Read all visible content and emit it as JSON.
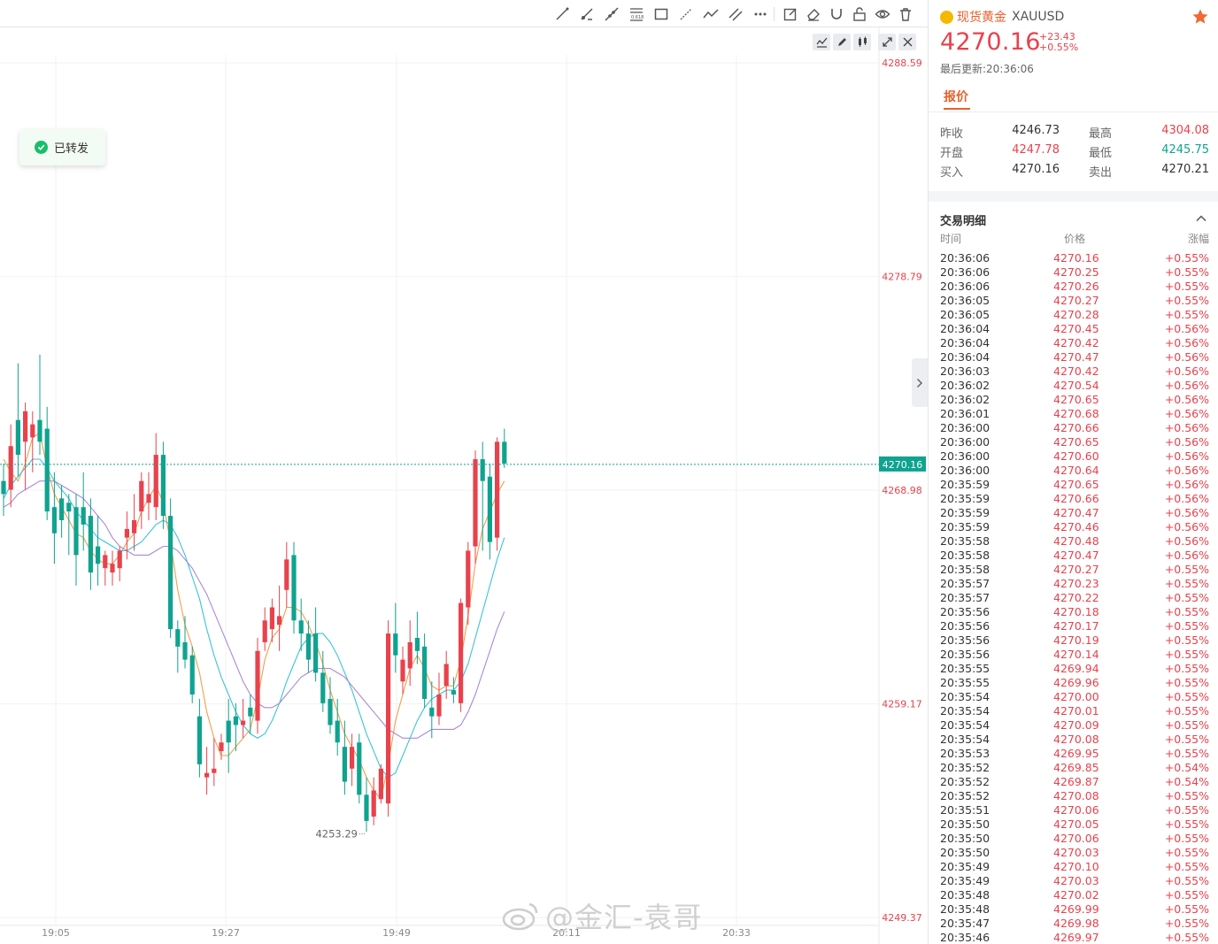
{
  "symbol": {
    "name": "现货黄金",
    "code": "XAUUSD",
    "price": "4270.16",
    "change": "+23.43",
    "change_pct": "+0.55%",
    "last_update": "最后更新:20:36:06"
  },
  "tabs": {
    "quote": "报价"
  },
  "quote": {
    "rows": [
      {
        "l1": "昨收",
        "v1": "4246.73",
        "c1": "dark",
        "l2": "最高",
        "v2": "4304.08",
        "c2": "red"
      },
      {
        "l1": "开盘",
        "v1": "4247.78",
        "c1": "red",
        "l2": "最低",
        "v2": "4245.75",
        "c2": "green"
      },
      {
        "l1": "买入",
        "v1": "4270.16",
        "c1": "dark",
        "l2": "卖出",
        "v2": "4270.21",
        "c2": "dark"
      }
    ]
  },
  "trade_detail": {
    "title": "交易明细",
    "headers": {
      "time": "时间",
      "price": "价格",
      "change": "涨幅"
    },
    "rows": [
      [
        "20:36:06",
        "4270.16",
        "+0.55%"
      ],
      [
        "20:36:06",
        "4270.25",
        "+0.55%"
      ],
      [
        "20:36:06",
        "4270.26",
        "+0.55%"
      ],
      [
        "20:36:05",
        "4270.27",
        "+0.55%"
      ],
      [
        "20:36:05",
        "4270.28",
        "+0.55%"
      ],
      [
        "20:36:04",
        "4270.45",
        "+0.56%"
      ],
      [
        "20:36:04",
        "4270.42",
        "+0.56%"
      ],
      [
        "20:36:04",
        "4270.47",
        "+0.56%"
      ],
      [
        "20:36:03",
        "4270.42",
        "+0.56%"
      ],
      [
        "20:36:02",
        "4270.54",
        "+0.56%"
      ],
      [
        "20:36:02",
        "4270.65",
        "+0.56%"
      ],
      [
        "20:36:01",
        "4270.68",
        "+0.56%"
      ],
      [
        "20:36:00",
        "4270.66",
        "+0.56%"
      ],
      [
        "20:36:00",
        "4270.65",
        "+0.56%"
      ],
      [
        "20:36:00",
        "4270.60",
        "+0.56%"
      ],
      [
        "20:36:00",
        "4270.64",
        "+0.56%"
      ],
      [
        "20:35:59",
        "4270.65",
        "+0.56%"
      ],
      [
        "20:35:59",
        "4270.66",
        "+0.56%"
      ],
      [
        "20:35:59",
        "4270.47",
        "+0.56%"
      ],
      [
        "20:35:59",
        "4270.46",
        "+0.56%"
      ],
      [
        "20:35:58",
        "4270.48",
        "+0.56%"
      ],
      [
        "20:35:58",
        "4270.47",
        "+0.56%"
      ],
      [
        "20:35:58",
        "4270.27",
        "+0.55%"
      ],
      [
        "20:35:57",
        "4270.23",
        "+0.55%"
      ],
      [
        "20:35:57",
        "4270.22",
        "+0.55%"
      ],
      [
        "20:35:56",
        "4270.18",
        "+0.55%"
      ],
      [
        "20:35:56",
        "4270.17",
        "+0.55%"
      ],
      [
        "20:35:56",
        "4270.19",
        "+0.55%"
      ],
      [
        "20:35:56",
        "4270.14",
        "+0.55%"
      ],
      [
        "20:35:55",
        "4269.94",
        "+0.55%"
      ],
      [
        "20:35:55",
        "4269.96",
        "+0.55%"
      ],
      [
        "20:35:54",
        "4270.00",
        "+0.55%"
      ],
      [
        "20:35:54",
        "4270.01",
        "+0.55%"
      ],
      [
        "20:35:54",
        "4270.09",
        "+0.55%"
      ],
      [
        "20:35:54",
        "4270.08",
        "+0.55%"
      ],
      [
        "20:35:53",
        "4269.95",
        "+0.55%"
      ],
      [
        "20:35:52",
        "4269.85",
        "+0.54%"
      ],
      [
        "20:35:52",
        "4269.87",
        "+0.54%"
      ],
      [
        "20:35:52",
        "4270.08",
        "+0.55%"
      ],
      [
        "20:35:51",
        "4270.06",
        "+0.55%"
      ],
      [
        "20:35:50",
        "4270.05",
        "+0.55%"
      ],
      [
        "20:35:50",
        "4270.06",
        "+0.55%"
      ],
      [
        "20:35:50",
        "4270.03",
        "+0.55%"
      ],
      [
        "20:35:49",
        "4270.10",
        "+0.55%"
      ],
      [
        "20:35:49",
        "4270.03",
        "+0.55%"
      ],
      [
        "20:35:48",
        "4270.02",
        "+0.55%"
      ],
      [
        "20:35:48",
        "4269.99",
        "+0.55%"
      ],
      [
        "20:35:47",
        "4269.98",
        "+0.55%"
      ],
      [
        "20:35:46",
        "4269.97",
        "+0.55%"
      ]
    ]
  },
  "toast": {
    "text": "已转发"
  },
  "watermark": {
    "text": "@金汇-袁哥"
  },
  "colors": {
    "up": "#e8424c",
    "down": "#0fa38f",
    "accent": "#e8602c",
    "ma1": "#f0a04b",
    "ma2": "#3cc3d6",
    "ma3": "#a98ad8"
  },
  "chart_data": {
    "type": "candlestick",
    "x_ticks": [
      "19:05",
      "19:27",
      "19:49",
      "20:11",
      "20:33"
    ],
    "y_ticks": [
      4288.59,
      4278.79,
      4268.98,
      4259.17,
      4249.37
    ],
    "ylim": [
      4249.37,
      4288.59
    ],
    "current_price": 4270.16,
    "low_marker": {
      "label": "4253.29",
      "value": 4253.29
    },
    "candles": [
      {
        "o": 4269.4,
        "h": 4270.2,
        "l": 4267.8,
        "c": 4268.8
      },
      {
        "o": 4269.0,
        "h": 4272.0,
        "l": 4268.2,
        "c": 4271.0
      },
      {
        "o": 4272.2,
        "h": 4274.8,
        "l": 4269.6,
        "c": 4270.6
      },
      {
        "o": 4271.2,
        "h": 4273.0,
        "l": 4269.0,
        "c": 4272.6
      },
      {
        "o": 4271.4,
        "h": 4272.6,
        "l": 4269.8,
        "c": 4272.0
      },
      {
        "o": 4272.2,
        "h": 4275.2,
        "l": 4270.6,
        "c": 4271.2
      },
      {
        "o": 4271.8,
        "h": 4272.8,
        "l": 4267.6,
        "c": 4268.0
      },
      {
        "o": 4268.2,
        "h": 4269.8,
        "l": 4265.6,
        "c": 4267.0
      },
      {
        "o": 4268.6,
        "h": 4269.2,
        "l": 4266.8,
        "c": 4267.6
      },
      {
        "o": 4268.4,
        "h": 4268.8,
        "l": 4266.0,
        "c": 4268.0
      },
      {
        "o": 4268.2,
        "h": 4268.8,
        "l": 4264.6,
        "c": 4266.0
      },
      {
        "o": 4268.2,
        "h": 4269.8,
        "l": 4266.2,
        "c": 4267.4
      },
      {
        "o": 4267.8,
        "h": 4268.6,
        "l": 4264.4,
        "c": 4265.2
      },
      {
        "o": 4266.4,
        "h": 4267.8,
        "l": 4264.6,
        "c": 4265.6
      },
      {
        "o": 4265.4,
        "h": 4266.2,
        "l": 4264.6,
        "c": 4266.0
      },
      {
        "o": 4265.2,
        "h": 4266.2,
        "l": 4264.6,
        "c": 4265.6
      },
      {
        "o": 4265.4,
        "h": 4266.4,
        "l": 4264.8,
        "c": 4266.2
      },
      {
        "o": 4266.8,
        "h": 4268.0,
        "l": 4265.8,
        "c": 4267.2
      },
      {
        "o": 4267.0,
        "h": 4268.8,
        "l": 4266.2,
        "c": 4267.6
      },
      {
        "o": 4268.0,
        "h": 4269.8,
        "l": 4267.2,
        "c": 4269.4
      },
      {
        "o": 4268.4,
        "h": 4269.8,
        "l": 4267.6,
        "c": 4268.8
      },
      {
        "o": 4268.2,
        "h": 4271.6,
        "l": 4267.6,
        "c": 4270.6
      },
      {
        "o": 4270.6,
        "h": 4271.2,
        "l": 4267.2,
        "c": 4267.8
      },
      {
        "o": 4267.8,
        "h": 4268.6,
        "l": 4262.2,
        "c": 4262.6
      },
      {
        "o": 4262.6,
        "h": 4263.0,
        "l": 4260.6,
        "c": 4261.8
      },
      {
        "o": 4262.0,
        "h": 4263.2,
        "l": 4260.8,
        "c": 4261.2
      },
      {
        "o": 4261.4,
        "h": 4261.8,
        "l": 4259.2,
        "c": 4259.6
      },
      {
        "o": 4258.6,
        "h": 4259.4,
        "l": 4255.8,
        "c": 4256.4
      },
      {
        "o": 4255.8,
        "h": 4257.2,
        "l": 4255.0,
        "c": 4256.0
      },
      {
        "o": 4256.0,
        "h": 4257.6,
        "l": 4255.4,
        "c": 4256.2
      },
      {
        "o": 4257.0,
        "h": 4257.8,
        "l": 4256.6,
        "c": 4257.4
      },
      {
        "o": 4258.4,
        "h": 4259.4,
        "l": 4256.0,
        "c": 4257.4
      },
      {
        "o": 4258.6,
        "h": 4259.2,
        "l": 4257.0,
        "c": 4258.2
      },
      {
        "o": 4258.2,
        "h": 4259.4,
        "l": 4257.6,
        "c": 4258.4
      },
      {
        "o": 4259.0,
        "h": 4259.6,
        "l": 4257.8,
        "c": 4258.6
      },
      {
        "o": 4258.4,
        "h": 4262.2,
        "l": 4257.8,
        "c": 4261.6
      },
      {
        "o": 4262.0,
        "h": 4263.6,
        "l": 4261.6,
        "c": 4263.0
      },
      {
        "o": 4262.6,
        "h": 4264.0,
        "l": 4262.0,
        "c": 4263.6
      },
      {
        "o": 4262.8,
        "h": 4264.6,
        "l": 4261.6,
        "c": 4263.2
      },
      {
        "o": 4264.4,
        "h": 4266.6,
        "l": 4263.6,
        "c": 4265.8
      },
      {
        "o": 4266.0,
        "h": 4266.6,
        "l": 4262.4,
        "c": 4263.0
      },
      {
        "o": 4263.0,
        "h": 4264.0,
        "l": 4261.6,
        "c": 4262.4
      },
      {
        "o": 4262.4,
        "h": 4263.0,
        "l": 4260.6,
        "c": 4261.2
      },
      {
        "o": 4262.4,
        "h": 4263.6,
        "l": 4260.2,
        "c": 4260.6
      },
      {
        "o": 4260.6,
        "h": 4261.6,
        "l": 4258.8,
        "c": 4259.2
      },
      {
        "o": 4259.4,
        "h": 4260.4,
        "l": 4257.8,
        "c": 4258.2
      },
      {
        "o": 4258.4,
        "h": 4259.4,
        "l": 4256.8,
        "c": 4257.4
      },
      {
        "o": 4257.2,
        "h": 4258.4,
        "l": 4255.0,
        "c": 4255.6
      },
      {
        "o": 4256.2,
        "h": 4257.8,
        "l": 4255.4,
        "c": 4257.2
      },
      {
        "o": 4257.4,
        "h": 4257.8,
        "l": 4254.6,
        "c": 4255.0
      },
      {
        "o": 4255.0,
        "h": 4255.8,
        "l": 4253.3,
        "c": 4253.8
      },
      {
        "o": 4254.0,
        "h": 4255.8,
        "l": 4253.6,
        "c": 4255.2
      },
      {
        "o": 4254.8,
        "h": 4256.4,
        "l": 4254.6,
        "c": 4256.2
      },
      {
        "o": 4254.6,
        "h": 4263.0,
        "l": 4254.0,
        "c": 4262.4
      },
      {
        "o": 4262.4,
        "h": 4263.8,
        "l": 4260.6,
        "c": 4261.4
      },
      {
        "o": 4260.2,
        "h": 4261.8,
        "l": 4259.6,
        "c": 4261.2
      },
      {
        "o": 4260.8,
        "h": 4263.0,
        "l": 4260.0,
        "c": 4262.0
      },
      {
        "o": 4262.2,
        "h": 4263.4,
        "l": 4261.0,
        "c": 4261.6
      },
      {
        "o": 4261.8,
        "h": 4262.4,
        "l": 4259.0,
        "c": 4259.4
      },
      {
        "o": 4259.0,
        "h": 4260.2,
        "l": 4257.6,
        "c": 4258.6
      },
      {
        "o": 4258.6,
        "h": 4260.6,
        "l": 4258.2,
        "c": 4259.6
      },
      {
        "o": 4260.0,
        "h": 4261.6,
        "l": 4259.4,
        "c": 4261.0
      },
      {
        "o": 4259.8,
        "h": 4260.4,
        "l": 4259.2,
        "c": 4259.6
      },
      {
        "o": 4259.2,
        "h": 4264.0,
        "l": 4258.8,
        "c": 4263.8
      },
      {
        "o": 4263.6,
        "h": 4266.6,
        "l": 4262.8,
        "c": 4266.2
      },
      {
        "o": 4266.4,
        "h": 4270.8,
        "l": 4265.6,
        "c": 4270.4
      },
      {
        "o": 4270.4,
        "h": 4271.2,
        "l": 4266.2,
        "c": 4269.4
      },
      {
        "o": 4269.6,
        "h": 4270.2,
        "l": 4265.8,
        "c": 4266.6
      },
      {
        "o": 4266.8,
        "h": 4271.4,
        "l": 4266.2,
        "c": 4271.2
      },
      {
        "o": 4271.2,
        "h": 4271.8,
        "l": 4270.0,
        "c": 4270.2
      }
    ],
    "ma": [
      {
        "name": "MA-fast",
        "color": "#f0a04b",
        "values": [
          4270.4,
          4269.8,
          4269.4,
          4270.2,
          4271.4,
          4271.6,
          4270.0,
          4268.8,
          4268.2,
          4267.6,
          4267.0,
          4266.8,
          4266.2,
          4265.8,
          4265.6,
          4265.6,
          4266.0,
          4266.6,
          4267.0,
          4268.0,
          4268.6,
          4269.2,
          4268.4,
          4266.6,
          4264.4,
          4262.8,
          4261.8,
          4260.6,
          4258.8,
          4257.6,
          4256.8,
          4256.8,
          4257.2,
          4257.6,
          4258.0,
          4259.4,
          4261.2,
          4262.2,
          4262.6,
          4263.6,
          4263.6,
          4263.4,
          4262.8,
          4262.0,
          4261.0,
          4259.8,
          4258.8,
          4257.8,
          4257.2,
          4256.6,
          4255.8,
          4255.2,
          4254.8,
          4256.4,
          4258.4,
          4259.6,
          4260.8,
          4261.4,
          4260.8,
          4260.0,
          4259.8,
          4260.0,
          4260.0,
          4261.2,
          4263.2,
          4265.6,
          4267.2,
          4268.0,
          4268.8,
          4269.4
        ]
      },
      {
        "name": "MA-mid",
        "color": "#3cc3d6",
        "values": [
          4268.6,
          4269.2,
          4269.6,
          4270.0,
          4270.4,
          4270.4,
          4270.0,
          4269.4,
          4269.0,
          4268.6,
          4268.0,
          4267.6,
          4267.2,
          4266.8,
          4266.6,
          4266.4,
          4266.2,
          4266.2,
          4266.4,
          4266.6,
          4267.0,
          4267.4,
          4267.6,
          4267.4,
          4266.8,
          4266.0,
          4265.0,
          4264.0,
          4262.6,
          4261.4,
          4260.4,
          4259.6,
          4258.8,
          4258.2,
          4257.8,
          4257.6,
          4257.8,
          4258.4,
          4259.2,
          4260.2,
          4261.0,
          4261.8,
          4262.2,
          4262.4,
          4262.4,
          4262.0,
          4261.4,
          4260.6,
          4259.8,
          4258.8,
          4257.8,
          4257.0,
          4256.2,
          4255.8,
          4256.0,
          4256.8,
          4257.6,
          4258.4,
          4259.0,
          4259.4,
          4259.6,
          4259.8,
          4259.8,
          4260.2,
          4261.0,
          4262.2,
          4263.4,
          4264.6,
          4265.8,
          4266.8
        ]
      },
      {
        "name": "MA-slow",
        "color": "#a98ad8",
        "values": [
          4268.2,
          4268.4,
          4268.8,
          4269.0,
          4269.2,
          4269.4,
          4269.4,
          4269.4,
          4269.2,
          4269.0,
          4268.8,
          4268.6,
          4268.2,
          4267.8,
          4267.4,
          4266.8,
          4266.4,
          4266.2,
          4266.0,
          4266.0,
          4266.0,
          4266.2,
          4266.4,
          4266.4,
          4266.2,
          4265.8,
          4265.4,
          4264.8,
          4264.2,
          4263.4,
          4262.6,
          4261.8,
          4261.0,
          4260.2,
          4259.6,
          4259.2,
          4259.0,
          4259.0,
          4259.2,
          4259.6,
          4260.0,
          4260.4,
          4260.6,
          4260.8,
          4260.8,
          4260.8,
          4260.6,
          4260.4,
          4260.0,
          4259.6,
          4259.2,
          4258.8,
          4258.4,
          4258.0,
          4257.8,
          4257.6,
          4257.6,
          4257.6,
          4257.8,
          4258.0,
          4258.0,
          4258.0,
          4258.0,
          4258.2,
          4258.8,
          4259.6,
          4260.6,
          4261.6,
          4262.6,
          4263.4
        ]
      }
    ]
  }
}
